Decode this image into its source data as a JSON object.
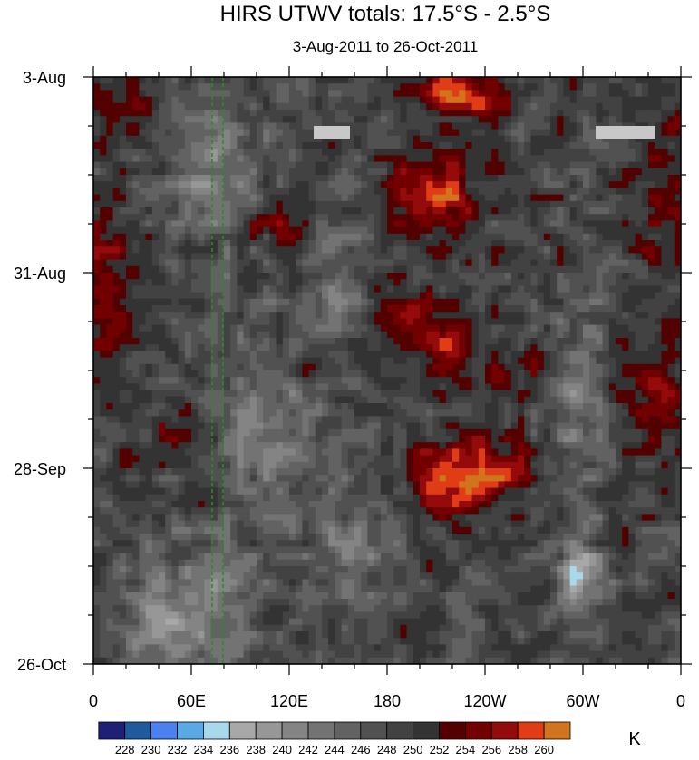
{
  "chart_data": {
    "type": "heatmap",
    "title": "HIRS UTWV totals: 17.5°S - 2.5°S",
    "subtitle": "3-Aug-2011 to 26-Oct-2011",
    "x_tick_labels": [
      "0",
      "60E",
      "120E",
      "180",
      "120W",
      "60W",
      "0"
    ],
    "y_tick_labels": [
      "3-Aug",
      "31-Aug",
      "28-Sep",
      "26-Oct"
    ],
    "colorbar": {
      "unit": "K",
      "levels": [
        228,
        230,
        232,
        234,
        236,
        238,
        240,
        242,
        244,
        246,
        248,
        250,
        252,
        254,
        256,
        258,
        260
      ],
      "level_labels": [
        "228",
        "230",
        "232",
        "234",
        "236",
        "238",
        "240",
        "242",
        "244",
        "246",
        "248",
        "250",
        "252",
        "254",
        "256",
        "258",
        "260"
      ],
      "colors": [
        "#1f1f78",
        "#1e5a9c",
        "#4a80f0",
        "#5aa8e6",
        "#a8d8ec",
        "#a8a8a8",
        "#979797",
        "#848484",
        "#737373",
        "#626262",
        "#515151",
        "#424242",
        "#333333",
        "#520000",
        "#720000",
        "#950a0a",
        "#e03c16",
        "#d2741e"
      ]
    },
    "features": {
      "dashed_lines_color": "#2a8a2a",
      "missing_data_color": "#c8c8c8"
    }
  }
}
